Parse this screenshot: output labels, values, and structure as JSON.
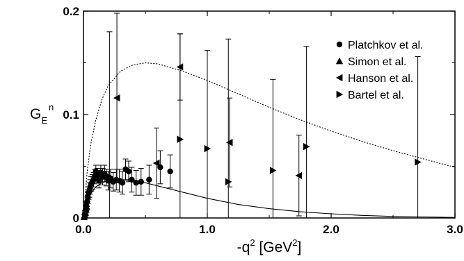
{
  "chart_data": {
    "type": "scatter",
    "xlabel": "-q",
    "xlabel_sup": "2",
    "xlabel_unit_open": " [GeV",
    "xlabel_unit_sup": "2",
    "xlabel_unit_close": "]",
    "ylabel": "G",
    "ylabel_sub": "E",
    "ylabel_sup": "n",
    "xlim": [
      0,
      3.0
    ],
    "ylim": [
      0,
      0.2
    ],
    "x_ticks": [
      {
        "value": 0,
        "label": "0.0"
      },
      {
        "value": 1,
        "label": "1.0"
      },
      {
        "value": 2,
        "label": "2.0"
      },
      {
        "value": 3,
        "label": "3.0"
      }
    ],
    "y_ticks": [
      {
        "value": 0,
        "label": "0"
      },
      {
        "value": 0.1,
        "label": "0.1"
      },
      {
        "value": 0.2,
        "label": "0.2"
      }
    ],
    "legend_position": "top-right",
    "grid": false,
    "series": [
      {
        "name": "Platchkov et al.",
        "marker": "circle",
        "points": [
          {
            "x": 0.012,
            "y": 0.004,
            "err": 0.003
          },
          {
            "x": 0.018,
            "y": 0.008,
            "err": 0.004
          },
          {
            "x": 0.024,
            "y": 0.012,
            "err": 0.004
          },
          {
            "x": 0.03,
            "y": 0.016,
            "err": 0.005
          },
          {
            "x": 0.036,
            "y": 0.02,
            "err": 0.006
          },
          {
            "x": 0.042,
            "y": 0.024,
            "err": 0.006
          },
          {
            "x": 0.048,
            "y": 0.027,
            "err": 0.007
          },
          {
            "x": 0.054,
            "y": 0.03,
            "err": 0.007
          },
          {
            "x": 0.062,
            "y": 0.033,
            "err": 0.007
          },
          {
            "x": 0.072,
            "y": 0.035,
            "err": 0.007
          },
          {
            "x": 0.082,
            "y": 0.037,
            "err": 0.007
          },
          {
            "x": 0.092,
            "y": 0.04,
            "err": 0.007
          },
          {
            "x": 0.1,
            "y": 0.045,
            "err": 0.006
          },
          {
            "x": 0.112,
            "y": 0.041,
            "err": 0.007
          },
          {
            "x": 0.125,
            "y": 0.036,
            "err": 0.007
          },
          {
            "x": 0.14,
            "y": 0.044,
            "err": 0.007
          },
          {
            "x": 0.155,
            "y": 0.04,
            "err": 0.008
          },
          {
            "x": 0.17,
            "y": 0.043,
            "err": 0.008
          },
          {
            "x": 0.185,
            "y": 0.039,
            "err": 0.008
          },
          {
            "x": 0.2,
            "y": 0.036,
            "err": 0.009
          },
          {
            "x": 0.22,
            "y": 0.038,
            "err": 0.009
          },
          {
            "x": 0.24,
            "y": 0.035,
            "err": 0.009
          },
          {
            "x": 0.265,
            "y": 0.037,
            "err": 0.01
          },
          {
            "x": 0.29,
            "y": 0.036,
            "err": 0.011
          },
          {
            "x": 0.315,
            "y": 0.034,
            "err": 0.011
          },
          {
            "x": 0.34,
            "y": 0.047,
            "err": 0.01
          },
          {
            "x": 0.365,
            "y": 0.045,
            "err": 0.01
          },
          {
            "x": 0.39,
            "y": 0.037,
            "err": 0.012
          },
          {
            "x": 0.425,
            "y": 0.034,
            "err": 0.012
          },
          {
            "x": 0.465,
            "y": 0.035,
            "err": 0.013
          },
          {
            "x": 0.53,
            "y": 0.037,
            "err": 0.014
          },
          {
            "x": 0.62,
            "y": 0.049,
            "err": 0.016
          },
          {
            "x": 0.7,
            "y": 0.045,
            "err": 0.016
          }
        ]
      },
      {
        "name": "Simon et al.",
        "marker": "triangle-up",
        "points": [
          {
            "x": 0.005,
            "y": 0.001,
            "err": 0.002
          },
          {
            "x": 0.01,
            "y": 0.003,
            "err": 0.003
          },
          {
            "x": 0.015,
            "y": 0.005,
            "err": 0.003
          },
          {
            "x": 0.02,
            "y": 0.008,
            "err": 0.004
          },
          {
            "x": 0.025,
            "y": 0.011,
            "err": 0.004
          }
        ]
      },
      {
        "name": "Hanson et al.",
        "marker": "triangle-left",
        "points": [
          {
            "x": 0.27,
            "y": 0.116,
            "err": 0.082
          },
          {
            "x": 0.59,
            "y": 0.053,
            "err": 0.034
          },
          {
            "x": 0.78,
            "y": 0.146,
            "err": 0.032
          },
          {
            "x": 1.18,
            "y": 0.073,
            "err": 0.043
          },
          {
            "x": 1.74,
            "y": 0.041,
            "err": 0.039
          }
        ]
      },
      {
        "name": "Bartel et al.",
        "marker": "triangle-right",
        "points": [
          {
            "x": 0.21,
            "y": 0.04,
            "err": 0.14
          },
          {
            "x": 0.78,
            "y": 0.076,
            "err": 0.102
          },
          {
            "x": 1.0,
            "y": 0.067,
            "err": 0.095
          },
          {
            "x": 1.17,
            "y": 0.035,
            "err": 0.138
          },
          {
            "x": 1.53,
            "y": 0.046,
            "err": 0.088
          },
          {
            "x": 1.8,
            "y": 0.069,
            "err": 0.097
          },
          {
            "x": 2.7,
            "y": 0.054,
            "err": 0.102
          }
        ]
      }
    ],
    "curves": [
      {
        "style": "dotted",
        "points": [
          [
            0,
            0
          ],
          [
            0.03,
            0.045
          ],
          [
            0.06,
            0.072
          ],
          [
            0.1,
            0.095
          ],
          [
            0.15,
            0.115
          ],
          [
            0.2,
            0.128
          ],
          [
            0.3,
            0.142
          ],
          [
            0.4,
            0.148
          ],
          [
            0.5,
            0.15
          ],
          [
            0.6,
            0.149
          ],
          [
            0.8,
            0.142
          ],
          [
            1.0,
            0.133
          ],
          [
            1.25,
            0.12
          ],
          [
            1.5,
            0.107
          ],
          [
            1.75,
            0.095
          ],
          [
            2.0,
            0.084
          ],
          [
            2.25,
            0.074
          ],
          [
            2.5,
            0.065
          ],
          [
            2.75,
            0.057
          ],
          [
            3.0,
            0.049
          ]
        ]
      },
      {
        "style": "solid",
        "points": [
          [
            0,
            0
          ],
          [
            0.02,
            0.012
          ],
          [
            0.05,
            0.022
          ],
          [
            0.1,
            0.03
          ],
          [
            0.15,
            0.034
          ],
          [
            0.2,
            0.036
          ],
          [
            0.3,
            0.037
          ],
          [
            0.4,
            0.036
          ],
          [
            0.5,
            0.034
          ],
          [
            0.6,
            0.031
          ],
          [
            0.8,
            0.025
          ],
          [
            1.0,
            0.019
          ],
          [
            1.25,
            0.013
          ],
          [
            1.5,
            0.009
          ],
          [
            1.75,
            0.006
          ],
          [
            2.0,
            0.004
          ],
          [
            2.25,
            0.0025
          ],
          [
            2.5,
            0.0015
          ],
          [
            2.75,
            0.001
          ],
          [
            3.0,
            0.0005
          ]
        ]
      }
    ]
  }
}
